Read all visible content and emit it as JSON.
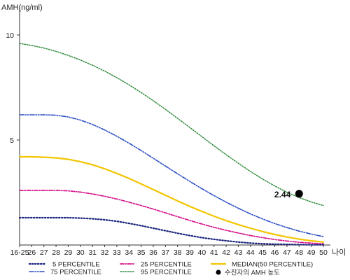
{
  "chart_data": {
    "type": "line",
    "ylabel": "AMH(ng/ml)",
    "xlabel": "나이",
    "ylim": [
      0,
      11
    ],
    "yticks": [
      5,
      10
    ],
    "grid": false,
    "categories": [
      "16-25",
      "26",
      "27",
      "28",
      "29",
      "30",
      "31",
      "32",
      "33",
      "34",
      "35",
      "36",
      "37",
      "38",
      "39",
      "40",
      "41",
      "42",
      "43",
      "44",
      "45",
      "46",
      "47",
      "48",
      "49",
      "50"
    ],
    "series": [
      {
        "name": "5 PERCENTILE",
        "color": "#1a237e",
        "values": [
          1.3,
          1.3,
          1.3,
          1.3,
          1.3,
          1.28,
          1.25,
          1.2,
          1.13,
          1.03,
          0.92,
          0.8,
          0.68,
          0.56,
          0.45,
          0.35,
          0.27,
          0.2,
          0.14,
          0.09,
          0.06,
          0.04,
          0.03,
          0.02,
          0.01,
          0.01
        ]
      },
      {
        "name": "25 PERCENTILE",
        "color": "#d6148c",
        "values": [
          2.6,
          2.6,
          2.6,
          2.6,
          2.58,
          2.52,
          2.43,
          2.32,
          2.19,
          2.04,
          1.88,
          1.71,
          1.53,
          1.35,
          1.17,
          1.0,
          0.84,
          0.7,
          0.57,
          0.45,
          0.35,
          0.26,
          0.19,
          0.13,
          0.09,
          0.06
        ]
      },
      {
        "name": "MEDIAN(50 PERCENTILE)",
        "color": "#f2c500",
        "values": [
          4.2,
          4.2,
          4.18,
          4.15,
          4.08,
          3.97,
          3.82,
          3.63,
          3.41,
          3.17,
          2.91,
          2.64,
          2.37,
          2.1,
          1.84,
          1.6,
          1.37,
          1.16,
          0.97,
          0.8,
          0.64,
          0.5,
          0.38,
          0.28,
          0.2,
          0.14
        ]
      },
      {
        "name": "75 PERCENTILE",
        "color": "#2a4fc4",
        "values": [
          6.2,
          6.2,
          6.2,
          6.18,
          6.1,
          5.95,
          5.74,
          5.48,
          5.18,
          4.85,
          4.5,
          4.13,
          3.76,
          3.39,
          3.03,
          2.68,
          2.35,
          2.04,
          1.75,
          1.48,
          1.24,
          1.02,
          0.83,
          0.66,
          0.52,
          0.4
        ]
      },
      {
        "name": "95 PERCENTILE",
        "color": "#2e8a3a",
        "values": [
          9.6,
          9.5,
          9.38,
          9.22,
          9.03,
          8.81,
          8.56,
          8.28,
          7.97,
          7.63,
          7.26,
          6.87,
          6.46,
          6.03,
          5.6,
          5.16,
          4.72,
          4.3,
          3.89,
          3.5,
          3.14,
          2.81,
          2.51,
          2.26,
          2.05,
          1.88
        ]
      }
    ],
    "point": {
      "label": "수진자의 AMH 농도",
      "x": "48",
      "value": 2.44,
      "value_label": "2.44",
      "color": "#000000"
    }
  }
}
